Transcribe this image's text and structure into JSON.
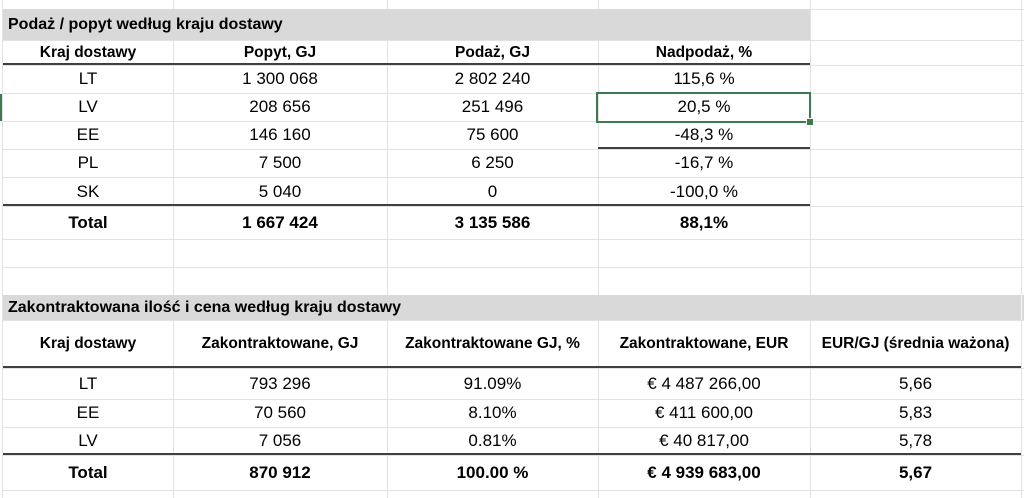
{
  "sheet": {
    "table1": {
      "title": "Podaż / popyt według kraju dostawy",
      "headers": [
        "Kraj dostawy",
        "Popyt, GJ",
        "Podaż, GJ",
        "Nadpodaż, %"
      ],
      "rows": [
        [
          "LT",
          "1 300 068",
          "2 802 240",
          "115,6 %"
        ],
        [
          "LV",
          "208 656",
          "251 496",
          "20,5 %"
        ],
        [
          "EE",
          "146 160",
          "75 600",
          "-48,3 %"
        ],
        [
          "PL",
          "7 500",
          "6 250",
          "-16,7 %"
        ],
        [
          "SK",
          "5 040",
          "0",
          "-100,0 %"
        ]
      ],
      "total": [
        "Total",
        "1 667 424",
        "3 135 586",
        "88,1%"
      ]
    },
    "table2": {
      "title": "Zakontraktowana ilość i cena według kraju dostawy",
      "headers": [
        "Kraj dostawy",
        "Zakontraktowane, GJ",
        "Zakontraktowane GJ, %",
        "Zakontraktowane, EUR",
        "EUR/GJ (średnia ważona)"
      ],
      "rows": [
        [
          "LT",
          "793 296",
          "91.09%",
          "€ 4 487 266,00",
          "5,66"
        ],
        [
          "EE",
          "70 560",
          "8.10%",
          "€ 411 600,00",
          "5,83"
        ],
        [
          "LV",
          "7 056",
          "0.81%",
          "€ 40 817,00",
          "5,78"
        ]
      ],
      "total": [
        "Total",
        "870 912",
        "100.00 %",
        "€ 4 939 683,00",
        "5,67"
      ]
    },
    "selection": {
      "row_label": "LV",
      "column": "Nadpodaż, %",
      "value": "20,5 %"
    },
    "colors": {
      "selection_green": "#3d7a52",
      "title_bar_gray": "#d9d9d9",
      "gridline": "#e2e2e2",
      "dark_border": "#3f3f3f"
    }
  }
}
